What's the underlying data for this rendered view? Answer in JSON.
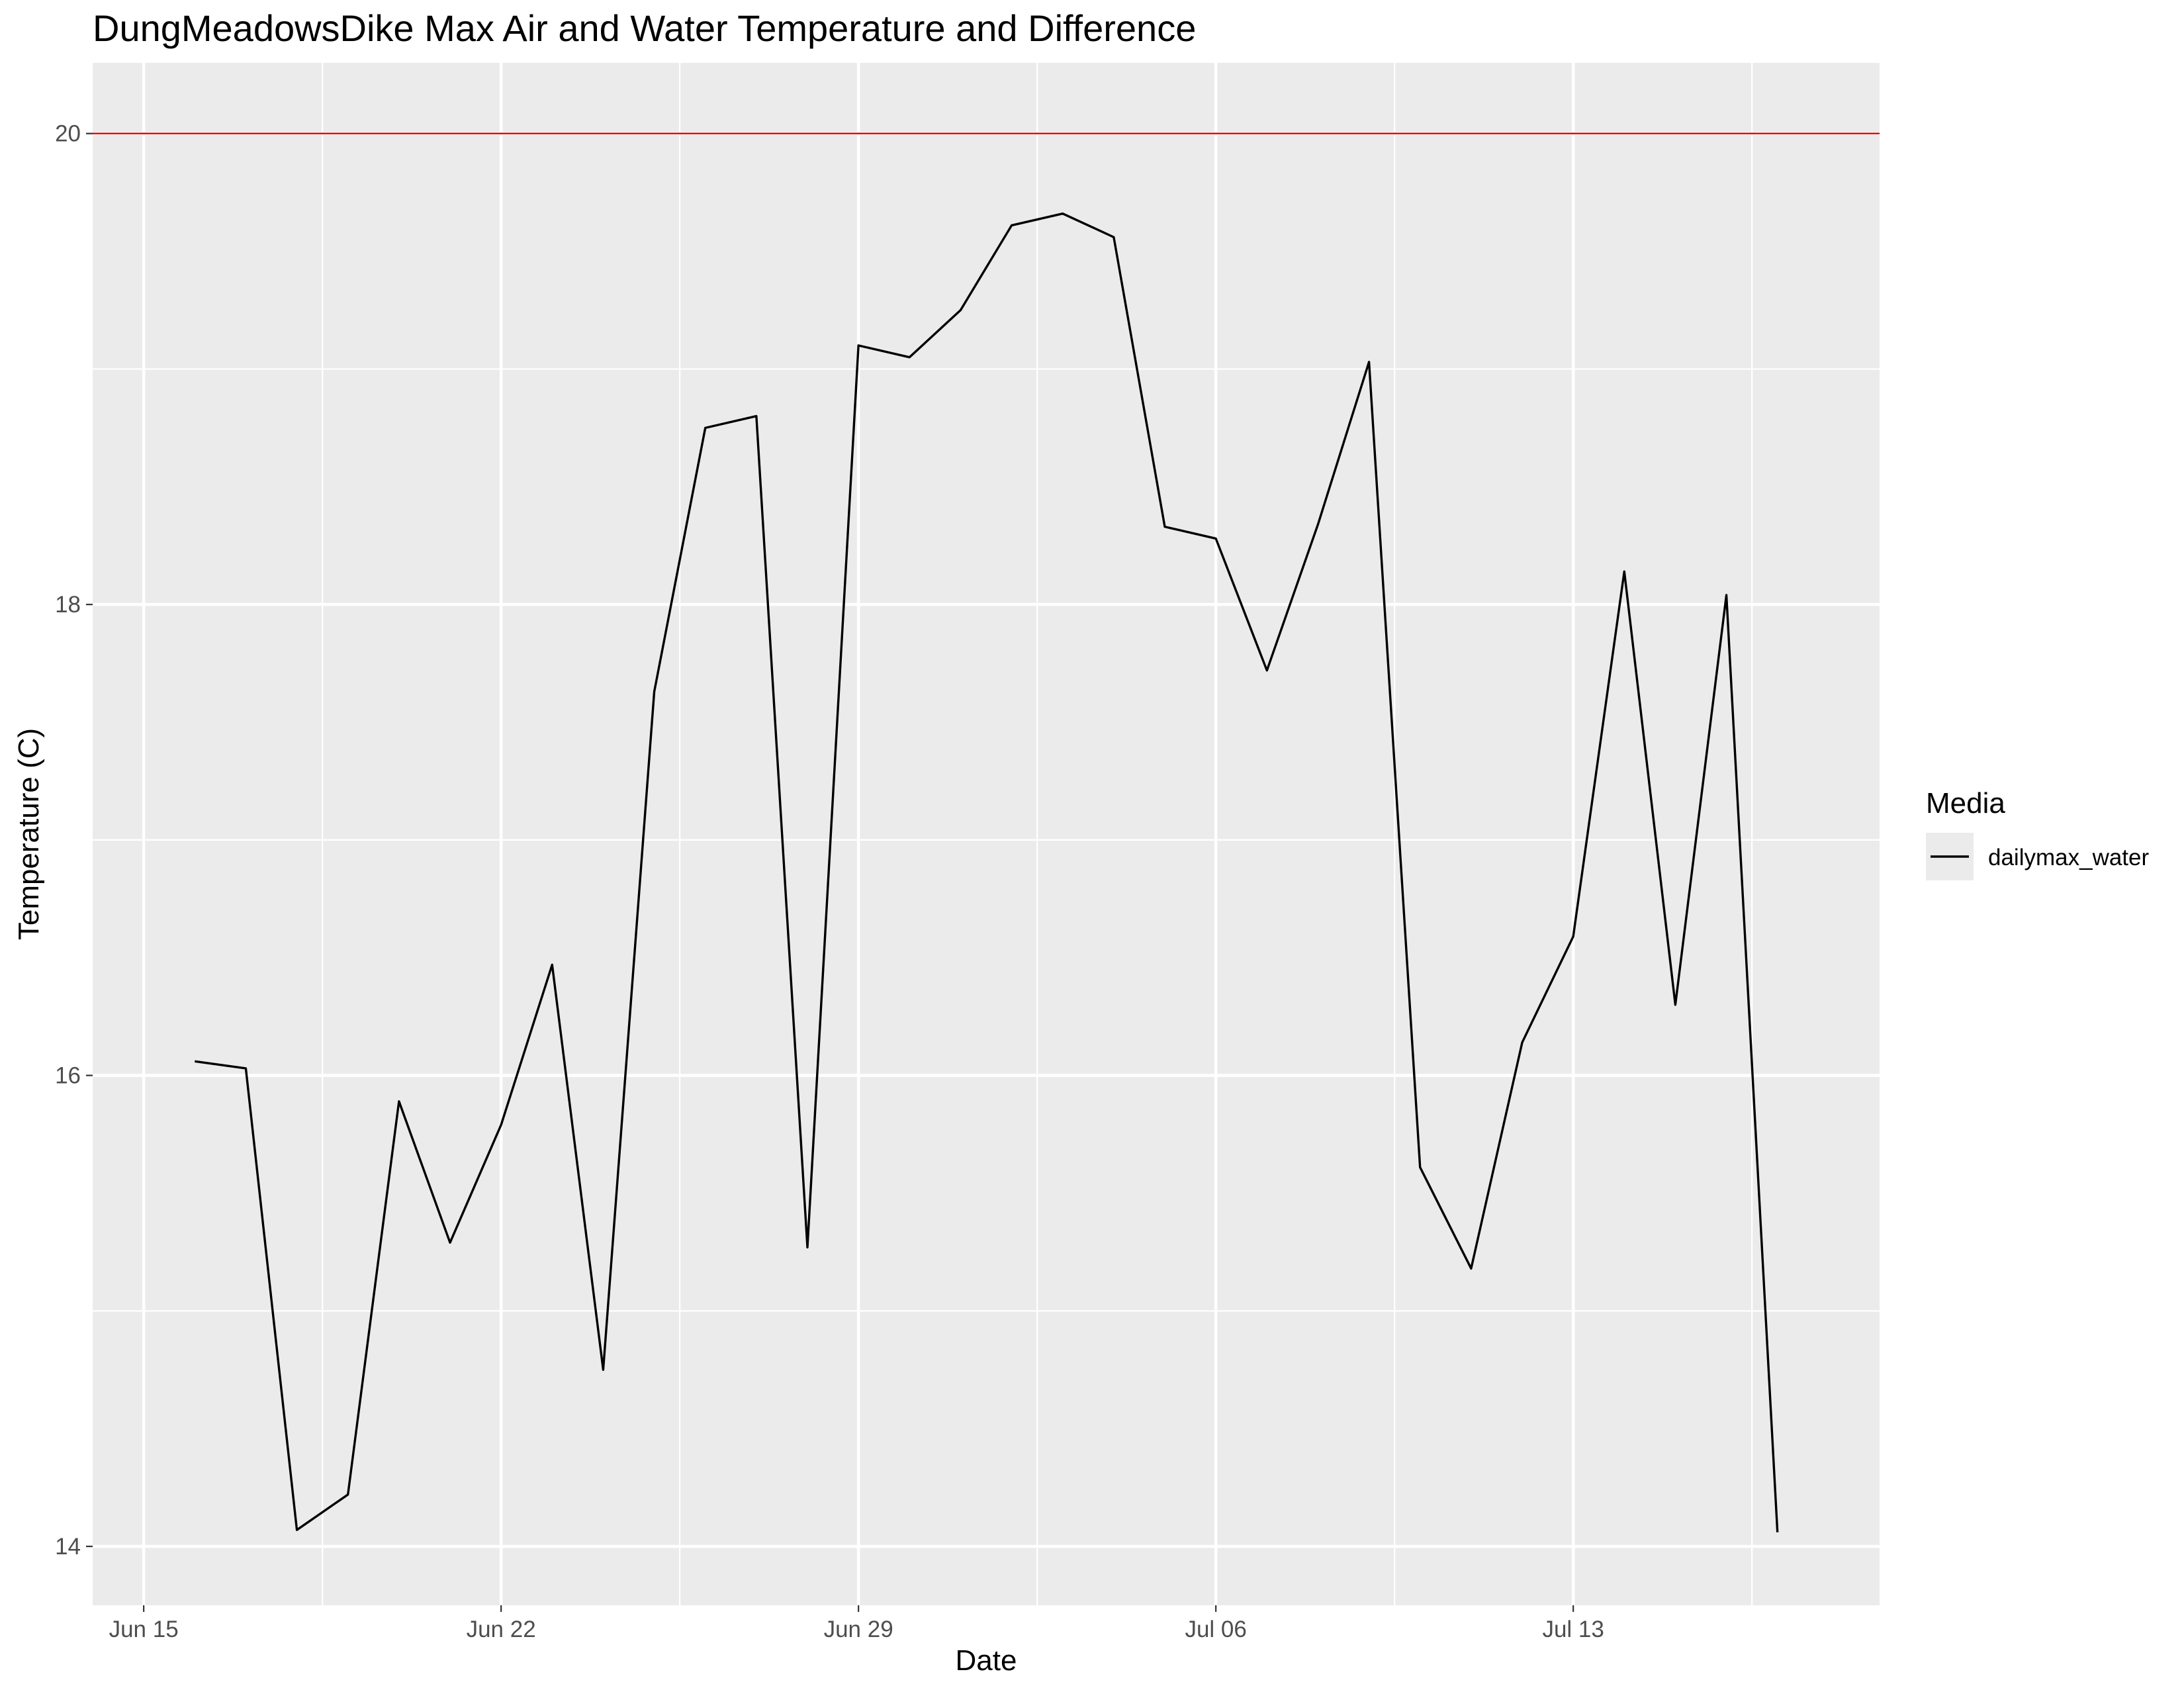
{
  "chart_data": {
    "type": "line",
    "title": "DungMeadowsDike Max Air and Water Temperature and Difference",
    "xlabel": "Date",
    "ylabel": "Temperature (C)",
    "x_axis_type": "date",
    "xlim": [
      "2025-06-14",
      "2025-07-19"
    ],
    "ylim": [
      13.75,
      20.3
    ],
    "y_ticks": [
      14,
      16,
      18,
      20
    ],
    "y_tick_labels": [
      "14",
      "16",
      "18",
      "20"
    ],
    "x_ticks": [
      "2025-06-15",
      "2025-06-22",
      "2025-06-29",
      "2025-07-06",
      "2025-07-13"
    ],
    "x_tick_labels": [
      "Jun 15",
      "Jun 22",
      "Jun 29",
      "Jul 06",
      "Jul 13"
    ],
    "grid": true,
    "background_color": "#ebebeb",
    "reference_line": {
      "y": 20,
      "color": "#e00000"
    },
    "legend": {
      "title": "Media",
      "position": "right"
    },
    "series": [
      {
        "name": "dailymax_water",
        "color": "#000000",
        "x": [
          "2025-06-16",
          "2025-06-17",
          "2025-06-18",
          "2025-06-19",
          "2025-06-20",
          "2025-06-21",
          "2025-06-22",
          "2025-06-23",
          "2025-06-24",
          "2025-06-25",
          "2025-06-26",
          "2025-06-27",
          "2025-06-28",
          "2025-06-29",
          "2025-06-30",
          "2025-07-01",
          "2025-07-02",
          "2025-07-03",
          "2025-07-04",
          "2025-07-05",
          "2025-07-06",
          "2025-07-07",
          "2025-07-08",
          "2025-07-09",
          "2025-07-10",
          "2025-07-11",
          "2025-07-12",
          "2025-07-13",
          "2025-07-14",
          "2025-07-15",
          "2025-07-16",
          "2025-07-17"
        ],
        "values": [
          16.06,
          16.03,
          14.07,
          14.22,
          15.89,
          15.29,
          15.79,
          16.47,
          14.75,
          17.63,
          18.75,
          18.8,
          15.27,
          19.1,
          19.05,
          19.25,
          19.61,
          19.66,
          19.56,
          18.33,
          18.28,
          17.72,
          18.34,
          19.03,
          15.61,
          15.18,
          16.14,
          16.59,
          18.14,
          16.3,
          18.04,
          14.06
        ]
      }
    ]
  }
}
